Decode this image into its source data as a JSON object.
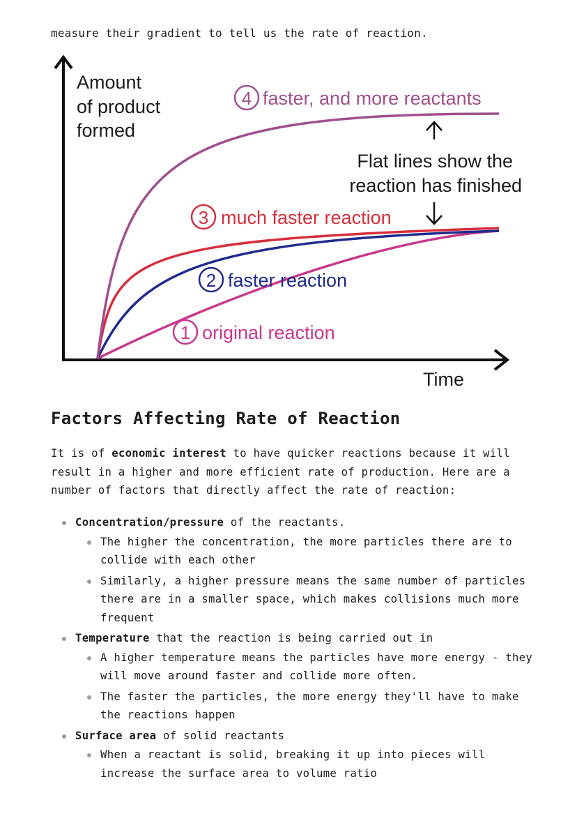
{
  "intro": {
    "text": "measure their gradient to tell us the rate of reaction."
  },
  "chart_data": {
    "type": "line",
    "title": "",
    "xlabel": "Time",
    "ylabel": "Amount of product formed",
    "ylabel_lines": [
      "Amount",
      "of product",
      "formed"
    ],
    "x": [
      0,
      1,
      2,
      3,
      4,
      5,
      6
    ],
    "series": [
      {
        "name": "original reaction",
        "number": "1",
        "color": "#c9378d",
        "values": [
          0,
          0.11,
          0.2,
          0.26,
          0.3,
          0.32,
          0.33
        ]
      },
      {
        "name": "faster reaction",
        "number": "2",
        "color": "#1f2b8c",
        "values": [
          0,
          0.23,
          0.29,
          0.31,
          0.32,
          0.33,
          0.33
        ]
      },
      {
        "name": "much faster reaction",
        "number": "3",
        "color": "#d62e3c",
        "values": [
          0,
          0.3,
          0.32,
          0.33,
          0.33,
          0.33,
          0.33
        ]
      },
      {
        "name": "faster, and more reactants",
        "number": "4",
        "color": "#a0508f",
        "values": [
          0,
          0.72,
          0.79,
          0.8,
          0.8,
          0.8,
          0.8
        ]
      }
    ],
    "annotation": {
      "line1": "Flat lines show the",
      "line2": "reaction has finished"
    },
    "xlim": [
      0,
      6
    ],
    "ylim": [
      0,
      1
    ],
    "grid": false
  },
  "section": {
    "heading": "Factors Affecting Rate of Reaction",
    "para_pre": "It is of ",
    "para_bold": "economic interest",
    "para_post": " to have quicker reactions because it will result in a higher and more efficient rate of production. Here are a number of factors that directly affect the rate of reaction:"
  },
  "factors": [
    {
      "bold": "Concentration/pressure",
      "rest": " of the reactants.",
      "sub": [
        "The higher the concentration, the more particles there are to collide with each other",
        "Similarly, a higher pressure means the same number of particles there are in a smaller space, which makes collisions much more frequent"
      ]
    },
    {
      "bold": "Temperature",
      "rest": " that the reaction is being carried out in",
      "sub": [
        "A higher temperature means the particles have more energy - they will move around faster and collide more often.",
        "The faster the particles, the more energy they'll have to make the reactions happen"
      ]
    },
    {
      "bold": "Surface area",
      "rest": " of solid reactants",
      "sub": [
        "When a reactant is solid, breaking it up into pieces will increase the surface area to volume ratio"
      ]
    }
  ]
}
